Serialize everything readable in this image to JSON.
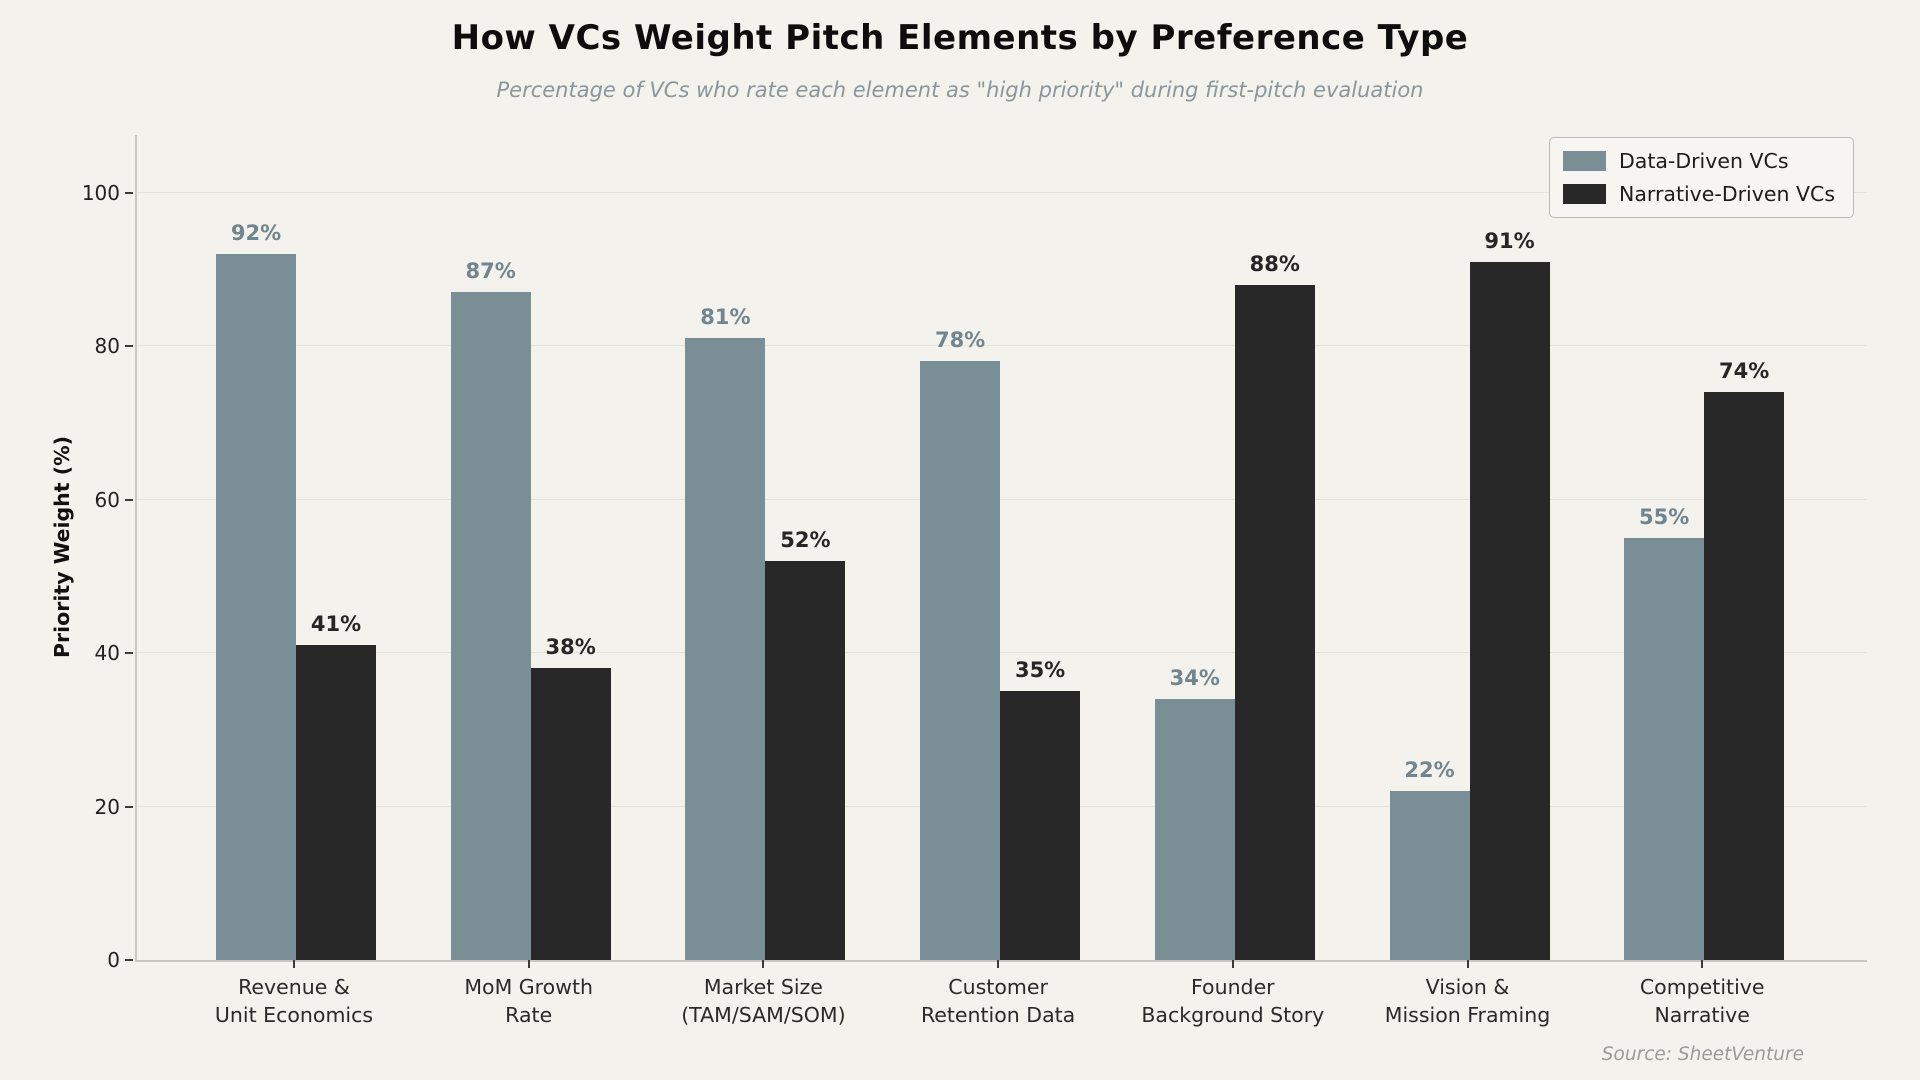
{
  "header": {
    "title": "How VCs Weight Pitch Elements by Preference Type",
    "subtitle": "Percentage of VCs who rate each element as \"high priority\" during first-pitch evaluation"
  },
  "chart_data": {
    "type": "bar",
    "title": "How VCs Weight Pitch Elements by Preference Type",
    "subtitle": "Percentage of VCs who rate each element as \"high priority\" during first-pitch evaluation",
    "categories": [
      [
        "Revenue &",
        "Unit Economics"
      ],
      [
        "MoM Growth",
        "Rate"
      ],
      [
        "Market Size",
        "(TAM/SAM/SOM)"
      ],
      [
        "Customer",
        "Retention Data"
      ],
      [
        "Founder",
        "Background Story"
      ],
      [
        "Vision &",
        "Mission Framing"
      ],
      [
        "Competitive",
        "Narrative"
      ]
    ],
    "series": [
      {
        "name": "Data-Driven VCs",
        "color": "#7A8E96",
        "label_color": "#71858E",
        "values": [
          92,
          87,
          81,
          78,
          34,
          22,
          55
        ]
      },
      {
        "name": "Narrative-Driven VCs",
        "color": "#282828",
        "label_color": "#262626",
        "values": [
          41,
          38,
          52,
          35,
          88,
          91,
          74
        ]
      }
    ],
    "ylabel": "Priority Weight (%)",
    "xlabel": "",
    "yticks": [
      0,
      20,
      40,
      60,
      80,
      100
    ],
    "ylim": [
      0,
      107.5
    ],
    "grid": true,
    "legend_position": "top-right",
    "value_label_format": "{v}%",
    "source": "Source: SheetVenture"
  },
  "colors": {
    "background": "#F4F2ED",
    "grid": "#E4E2DC",
    "spine": "#C9C7C1",
    "tick": "#3A3A3A",
    "title": "#0D0D0D",
    "subtitle": "#8A969C",
    "category_label": "#2A2A2A",
    "legend_border": "#BDBBB5",
    "legend_bg": "#F6F5F1",
    "source": "#9B9B99"
  }
}
